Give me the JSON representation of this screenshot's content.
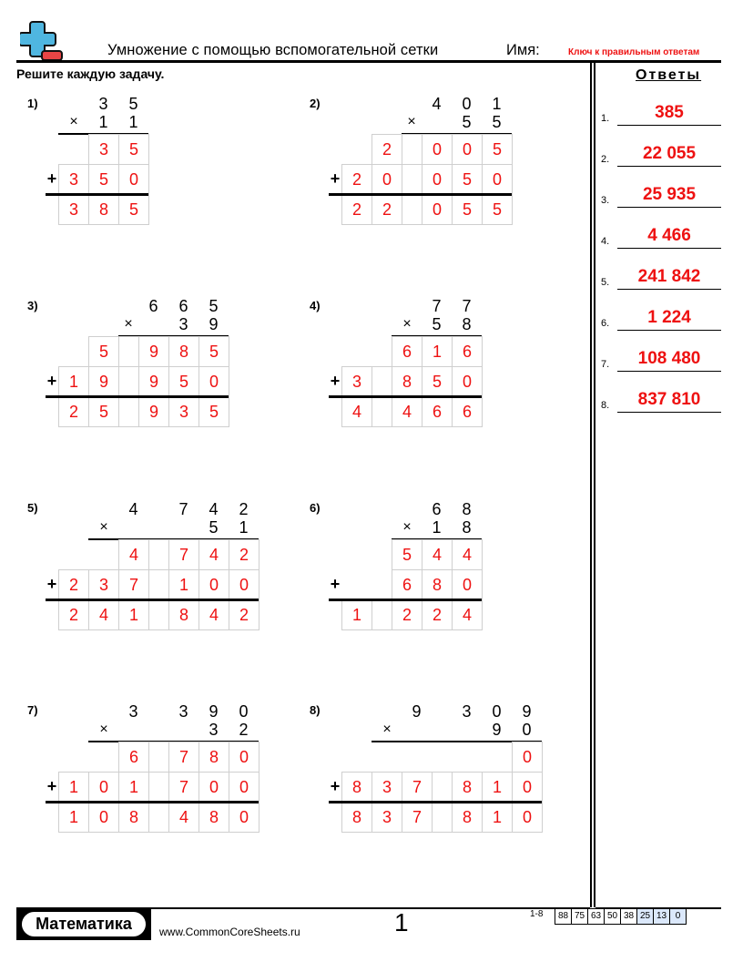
{
  "header": {
    "title": "Умножение с помощью вспомогательной сетки",
    "name_label": "Имя:",
    "answer_key_label": "Ключ к правильным ответам",
    "instructions": "Решите каждую задачу."
  },
  "colors": {
    "answer_red": "#ee1111",
    "cell_border": "#cfcfcf",
    "score_highlight": "#dbe8fb",
    "logo_blue": "#4fb6e0",
    "logo_red": "#e84545"
  },
  "problems": [
    {
      "label": "1)",
      "top": [
        "3",
        "5"
      ],
      "multiplier": [
        "1",
        "1"
      ],
      "row1": [
        "",
        "3",
        "5"
      ],
      "row2": [
        "3",
        "5",
        "0"
      ],
      "result": [
        "3",
        "8",
        "5"
      ]
    },
    {
      "label": "2)",
      "top": [
        "4",
        "0",
        "1"
      ],
      "multiplier": [
        "5",
        "5"
      ],
      "row1": [
        "",
        "2",
        "",
        "0",
        "0",
        "5"
      ],
      "row2": [
        "2",
        "0",
        "",
        "0",
        "5",
        "0"
      ],
      "result": [
        "2",
        "2",
        "",
        "0",
        "5",
        "5"
      ]
    },
    {
      "label": "3)",
      "top": [
        "6",
        "6",
        "5"
      ],
      "multiplier": [
        "3",
        "9"
      ],
      "row1": [
        "",
        "5",
        "",
        "9",
        "8",
        "5"
      ],
      "row2": [
        "1",
        "9",
        "",
        "9",
        "5",
        "0"
      ],
      "result": [
        "2",
        "5",
        "",
        "9",
        "3",
        "5"
      ]
    },
    {
      "label": "4)",
      "top": [
        "7",
        "7"
      ],
      "multiplier": [
        "5",
        "8"
      ],
      "row1": [
        "",
        "",
        "6",
        "1",
        "6"
      ],
      "row2": [
        "3",
        "",
        "8",
        "5",
        "0"
      ],
      "result": [
        "4",
        "",
        "4",
        "6",
        "6"
      ]
    },
    {
      "label": "5)",
      "top": [
        "4",
        "7",
        "4",
        "2"
      ],
      "multiplier": [
        "5",
        "1"
      ],
      "row1": [
        "",
        "",
        "4",
        "",
        "7",
        "4",
        "2"
      ],
      "row2": [
        "2",
        "3",
        "7",
        "",
        "1",
        "0",
        "0"
      ],
      "result": [
        "2",
        "4",
        "1",
        "",
        "8",
        "4",
        "2"
      ]
    },
    {
      "label": "6)",
      "top": [
        "6",
        "8"
      ],
      "multiplier": [
        "1",
        "8"
      ],
      "row1": [
        "",
        "",
        "5",
        "4",
        "4"
      ],
      "row2": [
        "",
        "",
        "6",
        "8",
        "0"
      ],
      "result": [
        "1",
        "",
        "2",
        "2",
        "4"
      ]
    },
    {
      "label": "7)",
      "top": [
        "3",
        "3",
        "9",
        "0"
      ],
      "multiplier": [
        "3",
        "2"
      ],
      "row1": [
        "",
        "",
        "6",
        "",
        "7",
        "8",
        "0"
      ],
      "row2": [
        "1",
        "0",
        "1",
        "",
        "7",
        "0",
        "0"
      ],
      "result": [
        "1",
        "0",
        "8",
        "",
        "4",
        "8",
        "0"
      ]
    },
    {
      "label": "8)",
      "top": [
        "9",
        "3",
        "0",
        "9"
      ],
      "multiplier": [
        "9",
        "0"
      ],
      "row1": [
        "",
        "",
        "",
        "",
        "",
        "",
        "0"
      ],
      "row2": [
        "8",
        "3",
        "7",
        "",
        "8",
        "1",
        "0"
      ],
      "result": [
        "8",
        "3",
        "7",
        "",
        "8",
        "1",
        "0"
      ]
    }
  ],
  "symbols": {
    "times": "×",
    "plus": "+"
  },
  "answers": {
    "title": "Ответы",
    "items": [
      {
        "num": "1.",
        "value": "385"
      },
      {
        "num": "2.",
        "value": "22 055"
      },
      {
        "num": "3.",
        "value": "25 935"
      },
      {
        "num": "4.",
        "value": "4 466"
      },
      {
        "num": "5.",
        "value": "241 842"
      },
      {
        "num": "6.",
        "value": "1 224"
      },
      {
        "num": "7.",
        "value": "108 480"
      },
      {
        "num": "8.",
        "value": "837 810"
      }
    ]
  },
  "footer": {
    "brand": "Математика",
    "site": "www.CommonCoreSheets.ru",
    "page": "1",
    "score_label": "1-8",
    "scores": [
      "88",
      "75",
      "63",
      "50",
      "38",
      "25",
      "13",
      "0"
    ]
  }
}
